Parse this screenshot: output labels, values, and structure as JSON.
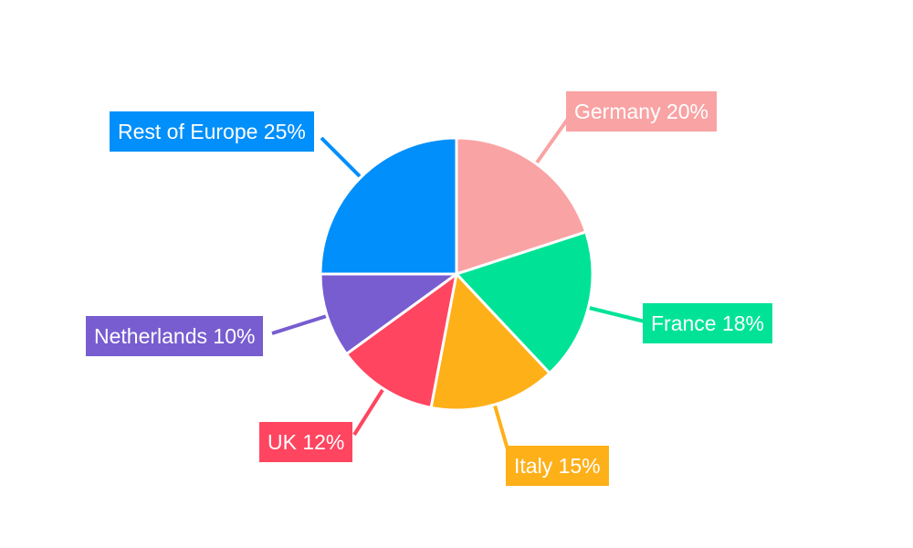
{
  "chart_data": {
    "type": "pie",
    "start_angle": "top, clockwise",
    "legend": "none",
    "categories": [
      "Germany",
      "France",
      "Italy",
      "UK",
      "Netherlands",
      "Rest of Europe"
    ],
    "values": [
      20,
      18,
      15,
      12,
      10,
      25
    ],
    "unit": "%",
    "colors": [
      "#F9A3A4",
      "#00E396",
      "#FEB019",
      "#FF4560",
      "#775DD0",
      "#008FFB"
    ],
    "labels": [
      "Germany 20%",
      "France 18%",
      "Italy 15%",
      "UK 12%",
      "Netherlands 10%",
      "Rest of Europe 25%"
    ]
  }
}
